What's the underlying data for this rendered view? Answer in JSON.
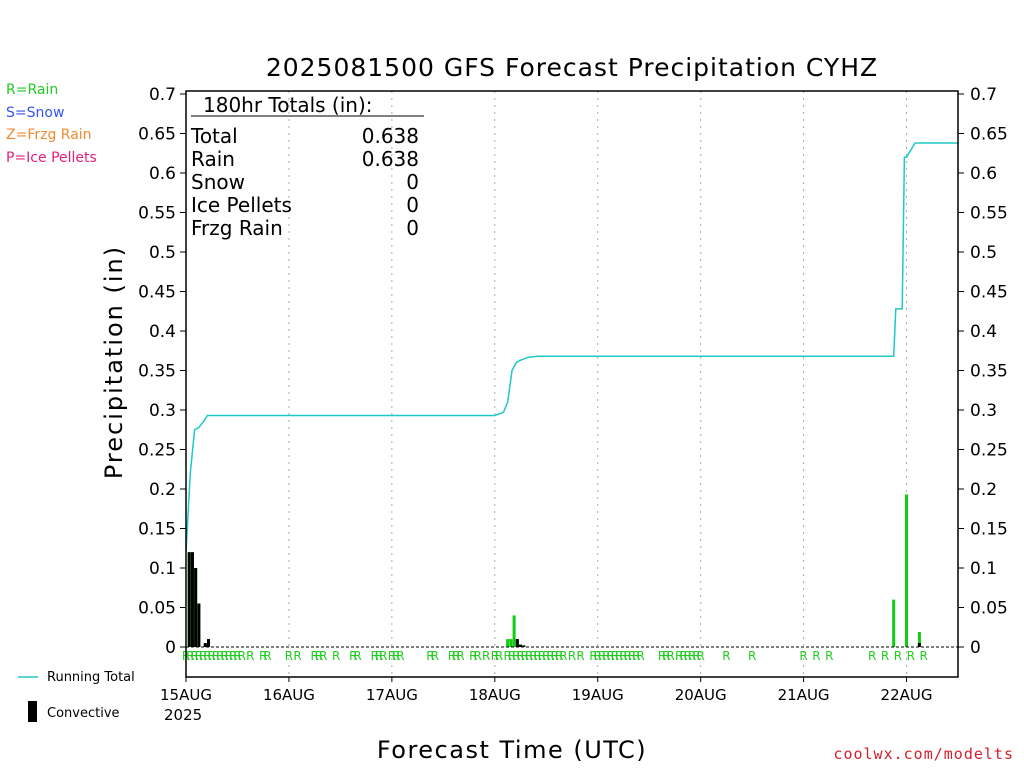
{
  "precip_type_keys": [
    {
      "text": "R=Rain",
      "color": "#22cc22"
    },
    {
      "text": "S=Snow",
      "color": "#3355ee"
    },
    {
      "text": "Z=Frzg Rain",
      "color": "#f08a30"
    },
    {
      "text": "P=Ice Pellets",
      "color": "#e6207a"
    }
  ],
  "totals_box": {
    "heading": "180hr Totals (in):",
    "rows": [
      {
        "label": "Total",
        "value": "0.638"
      },
      {
        "label": "Rain",
        "value": "0.638"
      },
      {
        "label": "Snow",
        "value": "0"
      },
      {
        "label": "Ice Pellets",
        "value": "0"
      },
      {
        "label": "Frzg Rain",
        "value": "0"
      }
    ]
  },
  "bottom_legend": {
    "running_total": "Running Total",
    "convective": "Convective"
  },
  "credit": "coolwx.com/modelts",
  "colors": {
    "running_total": "#20c8c8",
    "rain_bar": "#11cc11",
    "convective_bar": "#000000",
    "rain_marker": "#22cc22",
    "credit": "#d2222d"
  },
  "chart_data": {
    "type": "bar",
    "title": "2025081500 GFS Forecast Precipitation CYHZ",
    "xlabel": "Forecast Time (UTC)",
    "ylabel": "Precipitation (in)",
    "ylim": [
      0,
      0.7
    ],
    "y_ticks": [
      "0",
      "0.05",
      "0.1",
      "0.15",
      "0.2",
      "0.25",
      "0.3",
      "0.35",
      "0.4",
      "0.45",
      "0.5",
      "0.55",
      "0.6",
      "0.65",
      "0.7"
    ],
    "xlim_hours": [
      0,
      180
    ],
    "x_ticks": [
      {
        "hour": 0,
        "label": "15AUG"
      },
      {
        "hour": 24,
        "label": "16AUG"
      },
      {
        "hour": 48,
        "label": "17AUG"
      },
      {
        "hour": 72,
        "label": "18AUG"
      },
      {
        "hour": 96,
        "label": "19AUG"
      },
      {
        "hour": 120,
        "label": "20AUG"
      },
      {
        "hour": 144,
        "label": "21AUG"
      },
      {
        "hour": 168,
        "label": "22AUG"
      }
    ],
    "x_year_label": "2025",
    "grid": "vertical dotted at each day",
    "running_total": {
      "name": "Running Total",
      "x": [
        0,
        1,
        2,
        3,
        4,
        5,
        6,
        12,
        18,
        24,
        48,
        72,
        74,
        75,
        76,
        77,
        78,
        80,
        82,
        84,
        90,
        96,
        120,
        144,
        165,
        165.5,
        167,
        167.5,
        168,
        170,
        180
      ],
      "y": [
        0.12,
        0.22,
        0.275,
        0.278,
        0.285,
        0.293,
        0.293,
        0.293,
        0.293,
        0.293,
        0.293,
        0.293,
        0.297,
        0.31,
        0.35,
        0.36,
        0.363,
        0.367,
        0.368,
        0.368,
        0.368,
        0.368,
        0.368,
        0.368,
        0.368,
        0.428,
        0.428,
        0.62,
        0.62,
        0.638,
        0.638
      ]
    },
    "rain_bars": {
      "name": "Rain",
      "x": [
        0.75,
        1.5,
        2.25,
        3.0,
        3.75,
        4.5,
        5.25,
        6.0,
        75.0,
        75.75,
        76.5,
        77.25,
        78.0,
        78.75,
        165.0,
        168.0,
        171.0
      ],
      "y": [
        0.12,
        0.12,
        0.1,
        0.055,
        0.0,
        0.005,
        0.01,
        0.0,
        0.01,
        0.01,
        0.04,
        0.01,
        0.003,
        0.002,
        0.06,
        0.193,
        0.019
      ]
    },
    "convective_bars": {
      "name": "Convective",
      "x": [
        0.75,
        1.5,
        2.25,
        3.0,
        4.5,
        5.25,
        77.25,
        78.0,
        78.75,
        171.0
      ],
      "y": [
        0.12,
        0.12,
        0.1,
        0.055,
        0.005,
        0.01,
        0.01,
        0.003,
        0.002,
        0.005
      ]
    },
    "precip_type_marks": {
      "symbol": "R",
      "hours": [
        0,
        1,
        2,
        3,
        4,
        5,
        6,
        7,
        8,
        9,
        10,
        11,
        12,
        13,
        15,
        18,
        19,
        24,
        26,
        30,
        31,
        32,
        35,
        39,
        40,
        44,
        45,
        46,
        48,
        49,
        50,
        57,
        58,
        62,
        63,
        64,
        67,
        68,
        70,
        72,
        73,
        75,
        76,
        77,
        78,
        79,
        80,
        81,
        82,
        83,
        84,
        85,
        86,
        87,
        88,
        90,
        92,
        95,
        96,
        97,
        98,
        99,
        100,
        101,
        102,
        103,
        104,
        105,
        106,
        111,
        112,
        113,
        115,
        116,
        117,
        118,
        119,
        120,
        126,
        132,
        144,
        147,
        150,
        160,
        163,
        166,
        169,
        172
      ]
    }
  }
}
